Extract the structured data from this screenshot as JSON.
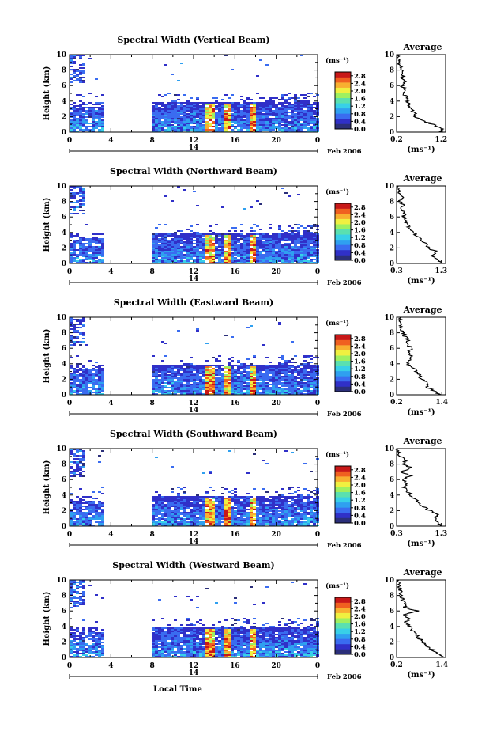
{
  "colors": {
    "background": "#ffffff",
    "colormap": [
      "#2b2f7a",
      "#3030c8",
      "#3a6cf0",
      "#2fa0f0",
      "#38d0e8",
      "#5ae0b0",
      "#9ff060",
      "#f0f040",
      "#f8b030",
      "#f06020",
      "#c81818"
    ]
  },
  "chart_data": [
    {
      "type": "heatmap",
      "title": "Spectral Width (Vertical Beam)",
      "ylabel": "Height (km)",
      "xlabel": "",
      "date_label": "Feb 2006",
      "day_label": "14",
      "unit_label": "(ms⁻¹)",
      "x_ticks": [
        "0",
        "4",
        "8",
        "12",
        "16",
        "20",
        "0"
      ],
      "y_ticks": [
        "0",
        "2",
        "4",
        "6",
        "8",
        "10"
      ],
      "xlim": [
        0,
        24
      ],
      "ylim": [
        0,
        10
      ],
      "colorbar_ticks": [
        "0.0",
        "0.4",
        "0.8",
        "1.2",
        "1.6",
        "2.0",
        "2.4",
        "2.8"
      ],
      "colorbar_range": [
        0.0,
        3.0
      ],
      "data_gap_hours": [
        3.2,
        7.8
      ],
      "average_profile": {
        "title": "Average",
        "xlabel": "(ms⁻¹)",
        "x_ticks": [
          "0.2",
          "1.2"
        ],
        "xlim": [
          0.2,
          1.3
        ],
        "y_ticks": [
          "0",
          "2",
          "4",
          "6",
          "8",
          "10"
        ],
        "heights": [
          0,
          0.5,
          1,
          1.5,
          2,
          2.5,
          3,
          3.5,
          4,
          4.5,
          5,
          5.5,
          6,
          6.5,
          7,
          7.5,
          8,
          8.5,
          9,
          9.5,
          10
        ],
        "values": [
          1.2,
          1.22,
          1.0,
          0.78,
          0.6,
          0.62,
          0.52,
          0.48,
          0.44,
          0.42,
          0.36,
          0.38,
          0.32,
          0.38,
          0.34,
          0.34,
          0.3,
          0.28,
          0.26,
          0.24,
          0.24
        ]
      }
    },
    {
      "type": "heatmap",
      "title": "Spectral Width (Northward Beam)",
      "ylabel": "Height (km)",
      "xlabel": "",
      "date_label": "Feb 2006",
      "day_label": "14",
      "unit_label": "(ms⁻¹)",
      "x_ticks": [
        "0",
        "4",
        "8",
        "12",
        "16",
        "20",
        "0"
      ],
      "y_ticks": [
        "0",
        "2",
        "4",
        "6",
        "8",
        "10"
      ],
      "xlim": [
        0,
        24
      ],
      "ylim": [
        0,
        10
      ],
      "colorbar_ticks": [
        "0.0",
        "0.4",
        "0.8",
        "1.2",
        "1.6",
        "2.0",
        "2.4",
        "2.8"
      ],
      "colorbar_range": [
        0.0,
        3.0
      ],
      "data_gap_hours": [
        3.2,
        7.8
      ],
      "average_profile": {
        "title": "Average",
        "xlabel": "(ms⁻¹)",
        "x_ticks": [
          "0.3",
          "1.3"
        ],
        "xlim": [
          0.3,
          1.4
        ],
        "y_ticks": [
          "0",
          "2",
          "4",
          "6",
          "8",
          "10"
        ],
        "heights": [
          0,
          0.5,
          1,
          1.5,
          2,
          2.5,
          3,
          3.5,
          4,
          4.5,
          5,
          5.5,
          6,
          6.5,
          7,
          7.5,
          8,
          8.5,
          9,
          9.5,
          10
        ],
        "values": [
          1.3,
          1.25,
          1.1,
          1.2,
          1.0,
          0.95,
          0.85,
          0.75,
          0.7,
          0.6,
          0.55,
          0.5,
          0.45,
          0.48,
          0.4,
          0.45,
          0.38,
          0.42,
          0.36,
          0.34,
          0.34
        ]
      }
    },
    {
      "type": "heatmap",
      "title": "Spectral Width (Eastward Beam)",
      "ylabel": "Height (km)",
      "xlabel": "",
      "date_label": "Feb 2006",
      "day_label": "14",
      "unit_label": "(ms⁻¹)",
      "x_ticks": [
        "0",
        "4",
        "8",
        "12",
        "16",
        "20",
        "0"
      ],
      "y_ticks": [
        "0",
        "2",
        "4",
        "6",
        "8",
        "10"
      ],
      "xlim": [
        0,
        24
      ],
      "ylim": [
        0,
        10
      ],
      "colorbar_ticks": [
        "0.0",
        "0.4",
        "0.8",
        "1.2",
        "1.6",
        "2.0",
        "2.4",
        "2.8"
      ],
      "colorbar_range": [
        0.0,
        3.0
      ],
      "data_gap_hours": [
        3.2,
        7.8
      ],
      "average_profile": {
        "title": "Average",
        "xlabel": "(ms⁻¹)",
        "x_ticks": [
          "0.2",
          "1.4"
        ],
        "xlim": [
          0.2,
          1.5
        ],
        "y_ticks": [
          "0",
          "2",
          "4",
          "6",
          "8",
          "10"
        ],
        "heights": [
          0,
          0.5,
          1,
          1.5,
          2,
          2.5,
          3,
          3.5,
          4,
          4.5,
          5,
          5.5,
          6,
          6.5,
          7,
          7.5,
          8,
          8.5,
          9,
          9.5,
          10
        ],
        "values": [
          1.35,
          1.2,
          1.0,
          1.05,
          0.85,
          0.8,
          0.72,
          0.65,
          0.5,
          0.55,
          0.6,
          0.5,
          0.62,
          0.48,
          0.52,
          0.42,
          0.38,
          0.34,
          0.3,
          0.28,
          0.28
        ]
      }
    },
    {
      "type": "heatmap",
      "title": "Spectral Width (Southward Beam)",
      "ylabel": "Height (km)",
      "xlabel": "",
      "date_label": "Feb 2006",
      "day_label": "14",
      "unit_label": "(ms⁻¹)",
      "x_ticks": [
        "0",
        "4",
        "8",
        "12",
        "16",
        "20",
        "0"
      ],
      "y_ticks": [
        "0",
        "2",
        "4",
        "6",
        "8",
        "10"
      ],
      "xlim": [
        0,
        24
      ],
      "ylim": [
        0,
        10
      ],
      "colorbar_ticks": [
        "0.0",
        "0.4",
        "0.8",
        "1.2",
        "1.6",
        "2.0",
        "2.4",
        "2.8"
      ],
      "colorbar_range": [
        0.0,
        3.0
      ],
      "data_gap_hours": [
        3.2,
        7.8
      ],
      "average_profile": {
        "title": "Average",
        "xlabel": "(ms⁻¹)",
        "x_ticks": [
          "0.3",
          "1.3"
        ],
        "xlim": [
          0.3,
          1.4
        ],
        "y_ticks": [
          "0",
          "2",
          "4",
          "6",
          "8",
          "10"
        ],
        "heights": [
          0,
          0.5,
          1,
          1.5,
          2,
          2.5,
          3,
          3.5,
          4,
          4.5,
          5,
          5.5,
          6,
          6.5,
          7,
          7.5,
          8,
          8.5,
          9,
          9.5,
          10
        ],
        "values": [
          1.3,
          1.25,
          1.15,
          1.2,
          1.05,
          0.9,
          0.8,
          0.7,
          0.62,
          0.55,
          0.45,
          0.55,
          0.4,
          0.6,
          0.42,
          0.62,
          0.45,
          0.5,
          0.38,
          0.34,
          0.32
        ]
      }
    },
    {
      "type": "heatmap",
      "title": "Spectral Width (Westward Beam)",
      "ylabel": "Height (km)",
      "xlabel": "Local Time",
      "date_label": "Feb 2006",
      "day_label": "14",
      "unit_label": "(ms⁻¹)",
      "x_ticks": [
        "0",
        "4",
        "8",
        "12",
        "16",
        "20",
        "0"
      ],
      "y_ticks": [
        "0",
        "2",
        "4",
        "6",
        "8",
        "10"
      ],
      "xlim": [
        0,
        24
      ],
      "ylim": [
        0,
        10
      ],
      "colorbar_ticks": [
        "0.0",
        "0.4",
        "0.8",
        "1.2",
        "1.6",
        "2.0",
        "2.4",
        "2.8"
      ],
      "colorbar_range": [
        0.0,
        3.0
      ],
      "data_gap_hours": [
        3.2,
        7.8
      ],
      "average_profile": {
        "title": "Average",
        "xlabel": "(ms⁻¹)",
        "x_ticks": [
          "0.2",
          "1.4"
        ],
        "xlim": [
          0.2,
          1.5
        ],
        "y_ticks": [
          "0",
          "2",
          "4",
          "6",
          "8",
          "10"
        ],
        "heights": [
          0,
          0.5,
          1,
          1.5,
          2,
          2.5,
          3,
          3.5,
          4,
          4.5,
          5,
          5.5,
          6,
          6.5,
          7,
          7.5,
          8,
          8.5,
          9,
          9.5,
          10
        ],
        "values": [
          1.4,
          1.3,
          1.15,
          1.0,
          0.9,
          0.8,
          0.72,
          0.62,
          0.55,
          0.45,
          0.5,
          0.42,
          0.75,
          0.4,
          0.45,
          0.35,
          0.32,
          0.3,
          0.28,
          0.26,
          0.26
        ]
      }
    }
  ]
}
